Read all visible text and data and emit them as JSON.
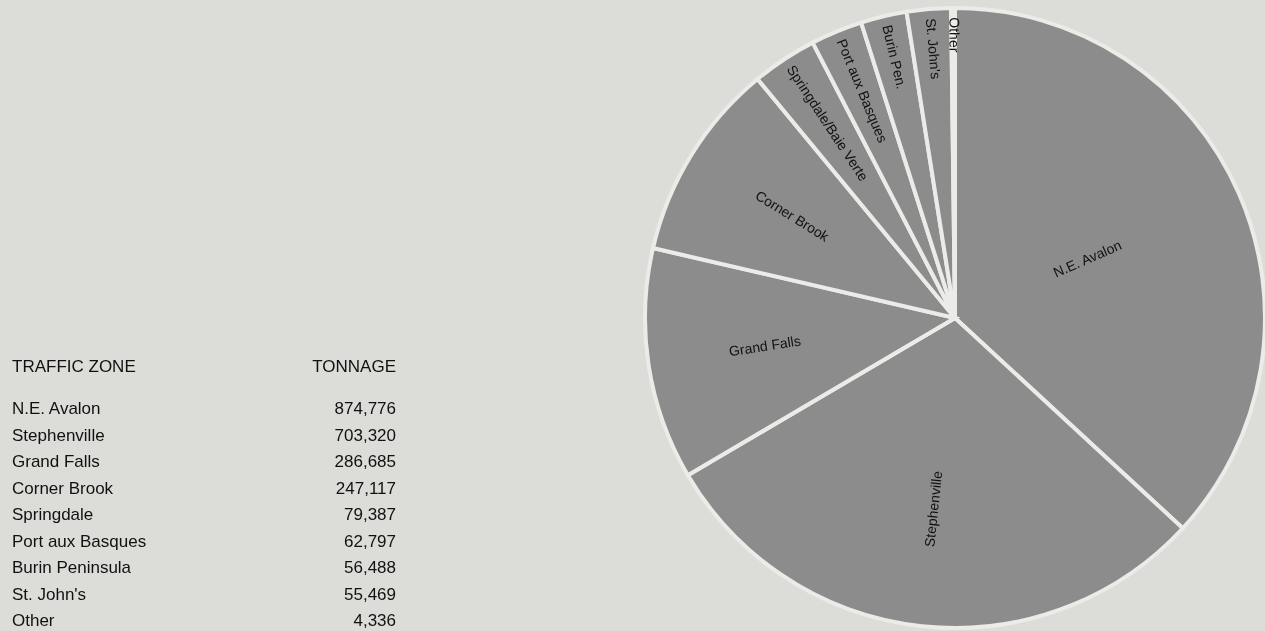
{
  "chart_data": {
    "type": "pie",
    "categories": [
      "N.E. Avalon",
      "Stephenville",
      "Grand Falls",
      "Corner Brook",
      "Springdale/Baie Verte",
      "Port aux Basques",
      "Burin Pen.",
      "St. John's",
      "Other"
    ],
    "values": [
      36.9,
      29.7,
      12.1,
      10.4,
      3.4,
      2.7,
      2.4,
      2.3,
      0.2
    ],
    "colors": [
      "#8c8c8c",
      "#8c8c8c",
      "#8c8c8c",
      "#8c8c8c",
      "#8c8c8c",
      "#8c8c8c",
      "#8c8c8c",
      "#8c8c8c",
      "#8c8c8c"
    ],
    "annotations": [
      "TRAFFIC ZONE",
      "TONNAGE",
      "N.E. Avalon",
      "874,776",
      "Stephenville",
      "703,320",
      "Grand Falls",
      "286,685",
      "Corner Brook",
      "247,117",
      "Springdale",
      "79,387",
      "Port aux Basques",
      "62,797",
      "Burin Peninsula",
      "56,488",
      "St. John's",
      "55,469",
      "Other",
      "4,336"
    ]
  }
}
